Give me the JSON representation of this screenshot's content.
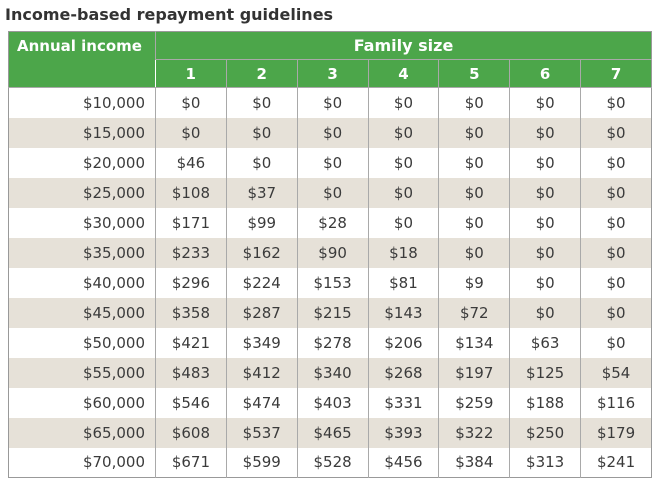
{
  "title": "Income-based repayment guidelines",
  "colors": {
    "header_green": "#4ca64a",
    "stripe_beige": "#e6e1d8",
    "border_gray": "#a9a9a9",
    "text_dark": "#3b3b3b"
  },
  "table": {
    "income_header": "Annual income",
    "family_header": "Family size",
    "family_sizes": [
      "1",
      "2",
      "3",
      "4",
      "5",
      "6",
      "7"
    ],
    "rows": [
      {
        "income": "$10,000",
        "values": [
          "$0",
          "$0",
          "$0",
          "$0",
          "$0",
          "$0",
          "$0"
        ]
      },
      {
        "income": "$15,000",
        "values": [
          "$0",
          "$0",
          "$0",
          "$0",
          "$0",
          "$0",
          "$0"
        ]
      },
      {
        "income": "$20,000",
        "values": [
          "$46",
          "$0",
          "$0",
          "$0",
          "$0",
          "$0",
          "$0"
        ]
      },
      {
        "income": "$25,000",
        "values": [
          "$108",
          "$37",
          "$0",
          "$0",
          "$0",
          "$0",
          "$0"
        ]
      },
      {
        "income": "$30,000",
        "values": [
          "$171",
          "$99",
          "$28",
          "$0",
          "$0",
          "$0",
          "$0"
        ]
      },
      {
        "income": "$35,000",
        "values": [
          "$233",
          "$162",
          "$90",
          "$18",
          "$0",
          "$0",
          "$0"
        ]
      },
      {
        "income": "$40,000",
        "values": [
          "$296",
          "$224",
          "$153",
          "$81",
          "$9",
          "$0",
          "$0"
        ]
      },
      {
        "income": "$45,000",
        "values": [
          "$358",
          "$287",
          "$215",
          "$143",
          "$72",
          "$0",
          "$0"
        ]
      },
      {
        "income": "$50,000",
        "values": [
          "$421",
          "$349",
          "$278",
          "$206",
          "$134",
          "$63",
          "$0"
        ]
      },
      {
        "income": "$55,000",
        "values": [
          "$483",
          "$412",
          "$340",
          "$268",
          "$197",
          "$125",
          "$54"
        ]
      },
      {
        "income": "$60,000",
        "values": [
          "$546",
          "$474",
          "$403",
          "$331",
          "$259",
          "$188",
          "$116"
        ]
      },
      {
        "income": "$65,000",
        "values": [
          "$608",
          "$537",
          "$465",
          "$393",
          "$322",
          "$250",
          "$179"
        ]
      },
      {
        "income": "$70,000",
        "values": [
          "$671",
          "$599",
          "$528",
          "$456",
          "$384",
          "$313",
          "$241"
        ]
      }
    ]
  }
}
